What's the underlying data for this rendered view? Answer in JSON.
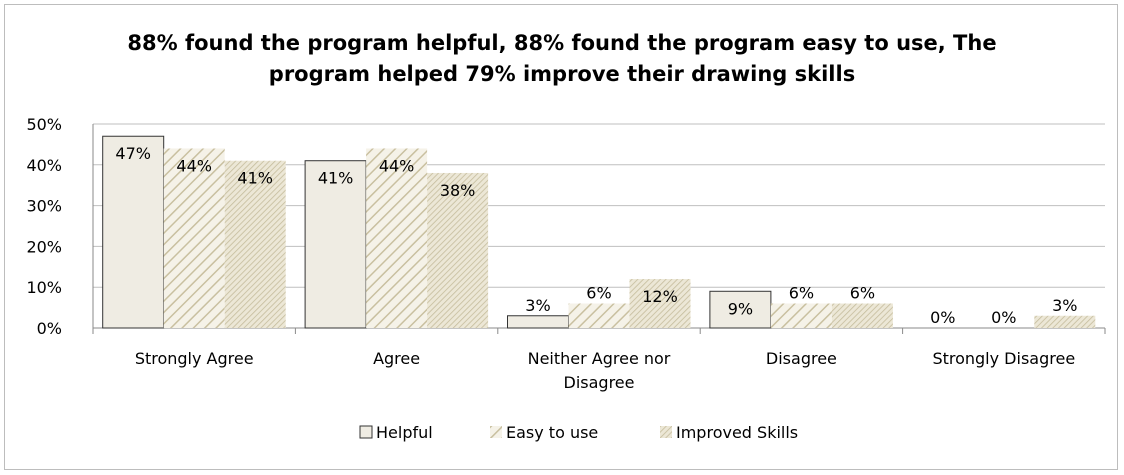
{
  "chart_data": {
    "type": "bar",
    "title_lines": [
      "88% found the program helpful, 88%  found the program easy to use, The",
      "program helped 79%  improve their drawing skills"
    ],
    "categories": [
      [
        "Strongly Agree"
      ],
      [
        "Agree"
      ],
      [
        "Neither Agree nor",
        "Disagree"
      ],
      [
        "Disagree"
      ],
      [
        "Strongly Disagree"
      ]
    ],
    "series": [
      {
        "name": "Helpful",
        "values": [
          47,
          41,
          3,
          9,
          0
        ],
        "labels": [
          "47%",
          "41%",
          "3%",
          "9%",
          "0%"
        ],
        "pattern": "plain"
      },
      {
        "name": "Easy to use",
        "values": [
          44,
          44,
          6,
          6,
          0
        ],
        "labels": [
          "44%",
          "44%",
          "6%",
          "6%",
          "0%"
        ],
        "pattern": "hatch-wide"
      },
      {
        "name": "Improved Skills",
        "values": [
          41,
          38,
          12,
          6,
          3
        ],
        "labels": [
          "41%",
          "38%",
          "12%",
          "6%",
          "3%"
        ],
        "pattern": "hatch-dense"
      }
    ],
    "y_ticks": [
      "0%",
      "10%",
      "20%",
      "30%",
      "40%",
      "50%"
    ],
    "ylim": [
      0,
      50
    ],
    "grid": true,
    "legend": "bottom",
    "colors": {
      "bar_fill": "#efece3",
      "hatch": "#c9c0a0",
      "border": "#333333",
      "grid": "#bfbfbf"
    }
  }
}
